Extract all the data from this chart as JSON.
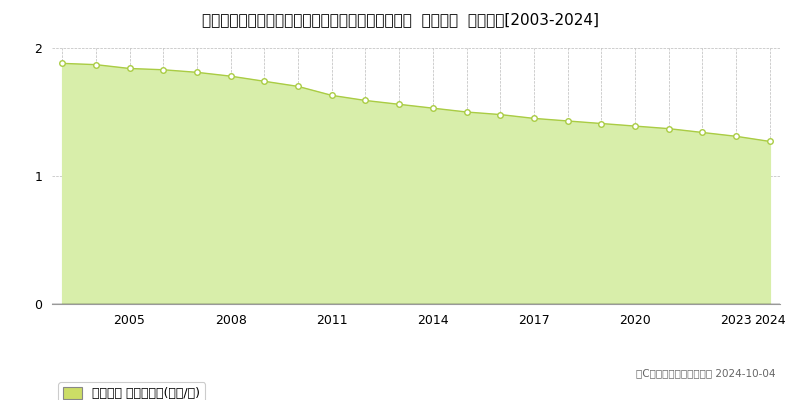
{
  "title": "佐賀県藤津郡太良町大字大浦字津ノ浦乙１５１５番  基準地価  地価推移[2003-2024]",
  "years": [
    2003,
    2004,
    2005,
    2006,
    2007,
    2008,
    2009,
    2010,
    2011,
    2012,
    2013,
    2014,
    2015,
    2016,
    2017,
    2018,
    2019,
    2020,
    2021,
    2022,
    2023,
    2024
  ],
  "values": [
    1.88,
    1.87,
    1.84,
    1.83,
    1.81,
    1.78,
    1.74,
    1.7,
    1.63,
    1.59,
    1.56,
    1.53,
    1.5,
    1.48,
    1.45,
    1.43,
    1.41,
    1.39,
    1.37,
    1.34,
    1.31,
    1.27
  ],
  "line_color": "#aacc44",
  "fill_color": "#d8eeaa",
  "marker_color": "#ffffff",
  "marker_edge_color": "#aacc44",
  "grid_color": "#bbbbbb",
  "background_color": "#ffffff",
  "plot_bg_color": "#ffffff",
  "ylim": [
    0,
    2.0
  ],
  "yticks": [
    0,
    1,
    2
  ],
  "xticks": [
    2005,
    2008,
    2011,
    2014,
    2017,
    2020,
    2023,
    2024
  ],
  "legend_label": "基準地価 平均坪単価(万円/坪)",
  "legend_color": "#ccdd66",
  "copyright_text": "（C）土地価格ドットコム 2024-10-04",
  "title_fontsize": 11,
  "axis_fontsize": 9,
  "legend_fontsize": 9
}
